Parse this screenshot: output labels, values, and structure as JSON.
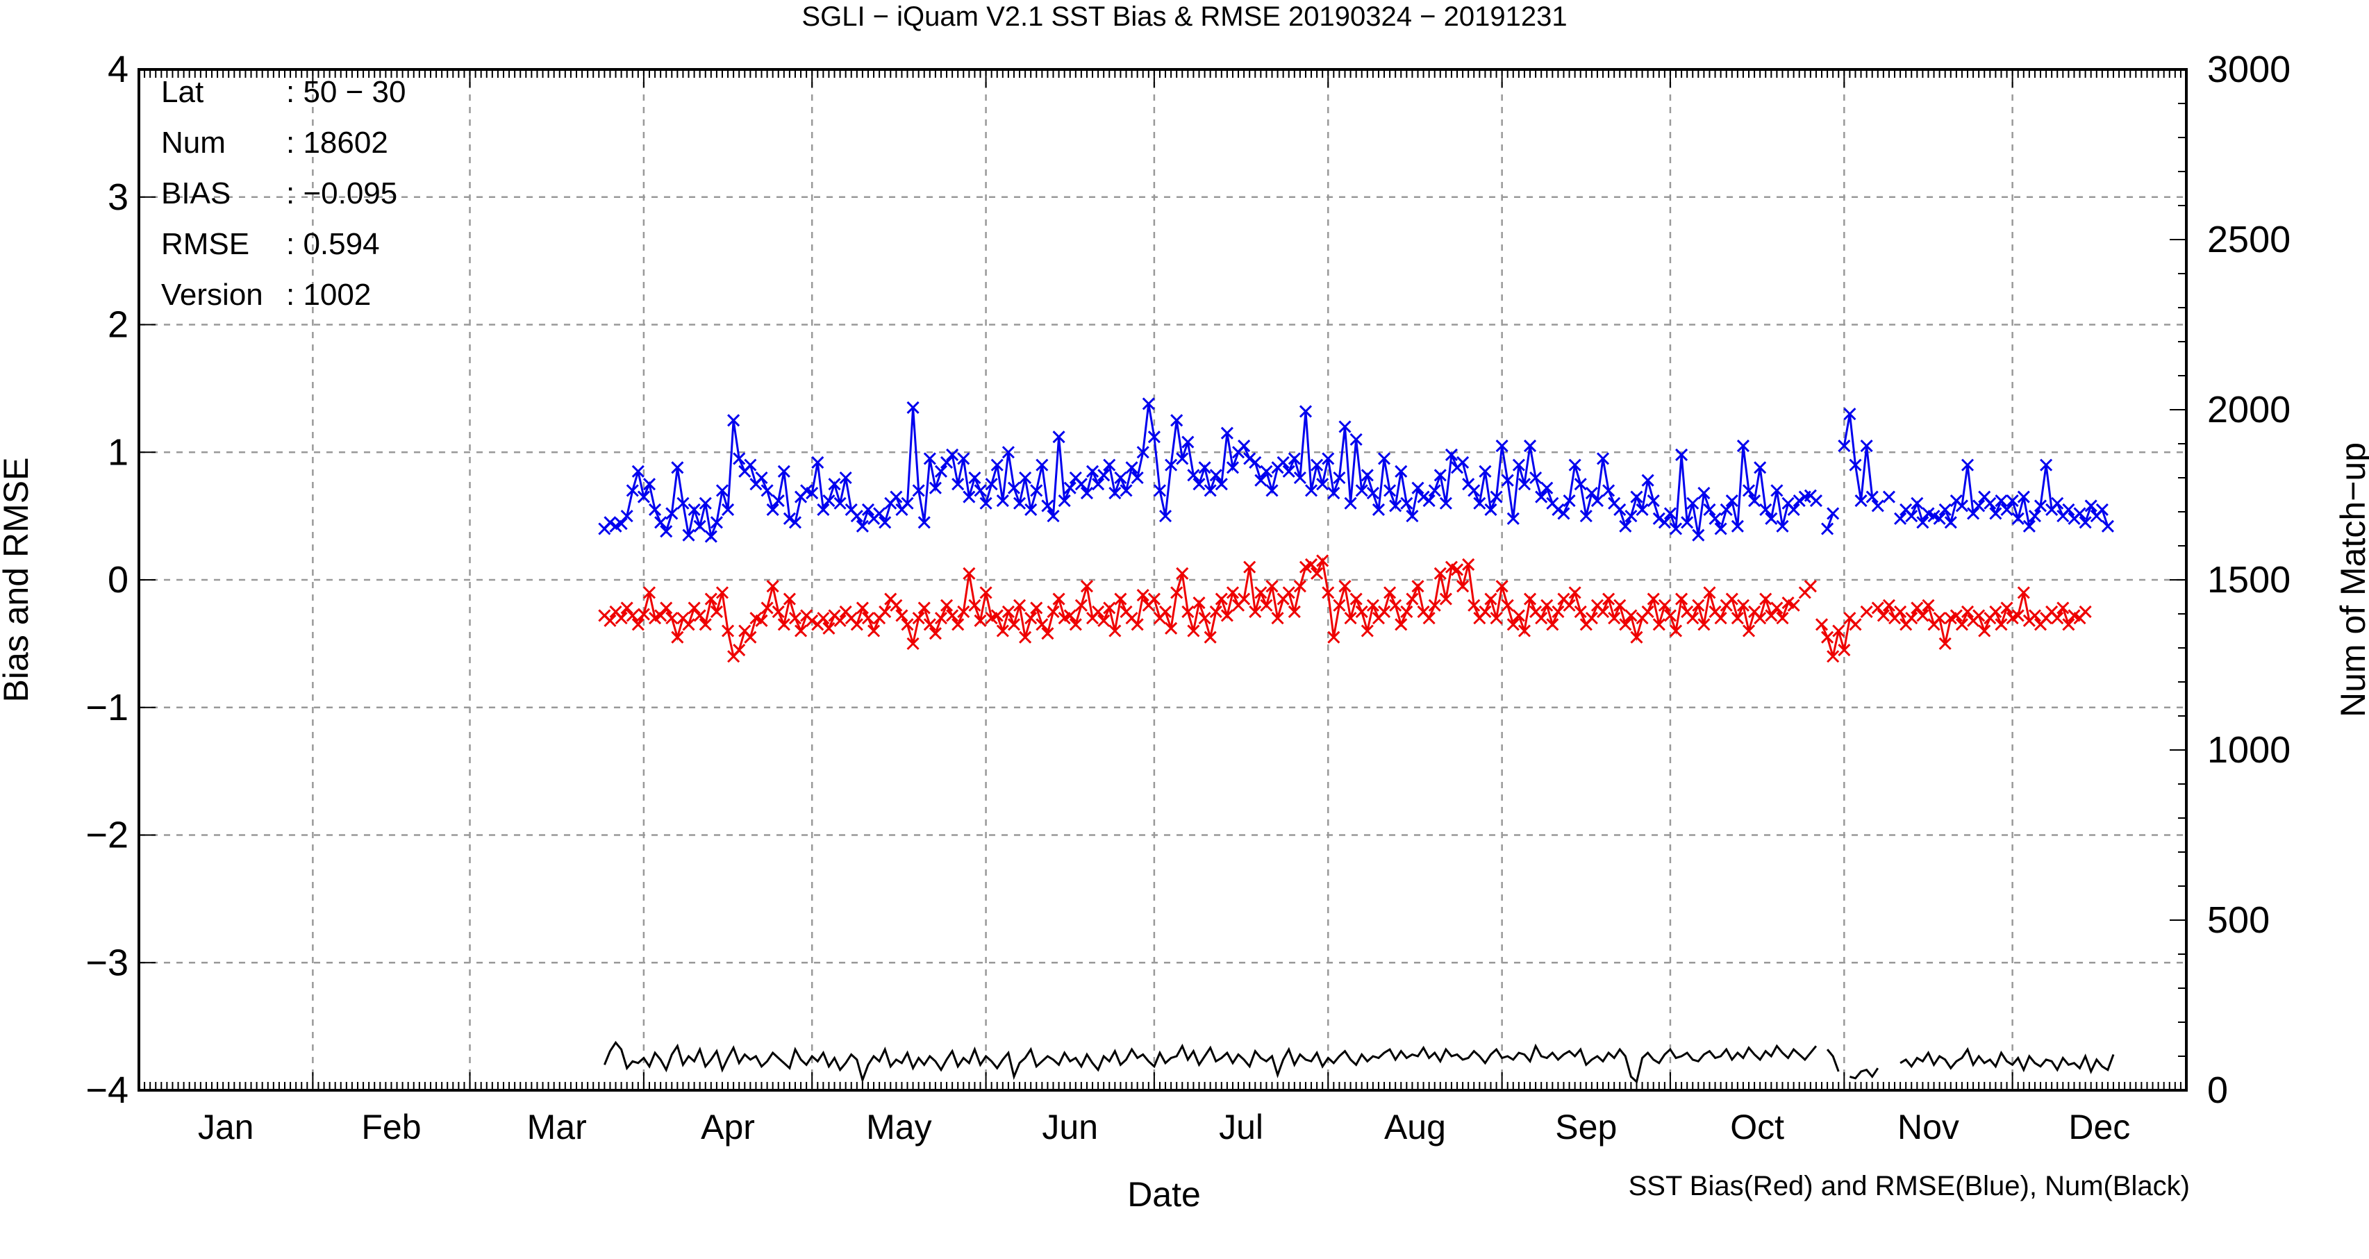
{
  "chart_data": {
    "type": "line",
    "title": "SGLI − iQuam V2.1 SST Bias & RMSE 20190324 − 20191231",
    "xlabel": "Date",
    "ylabel": "Bias and RMSE",
    "y2label": "Num of Match−up",
    "footer": "SST Bias(Red) and RMSE(Blue), Num(Black)",
    "x_range": [
      "2019-01-01",
      "2019-12-31"
    ],
    "x_ticks": [
      "Jan",
      "Feb",
      "Mar",
      "Apr",
      "May",
      "Jun",
      "Jul",
      "Aug",
      "Sep",
      "Oct",
      "Nov",
      "Dec"
    ],
    "ylim": [
      -4,
      4
    ],
    "y_ticks": [
      "4",
      "3",
      "2",
      "1",
      "0",
      "−1",
      "−2",
      "−3",
      "−4"
    ],
    "y2lim": [
      0,
      3000
    ],
    "y2_ticks": [
      "3000",
      "2500",
      "2000",
      "1500",
      "1000",
      "500",
      "0"
    ],
    "grid": true,
    "info": [
      {
        "key": "Lat",
        "value": ": 50 − 30"
      },
      {
        "key": "Num",
        "value": ": 18602"
      },
      {
        "key": "BIAS",
        "value": ": −0.095"
      },
      {
        "key": "RMSE",
        "value": ": 0.594"
      },
      {
        "key": "Version",
        "value": ": 1002"
      }
    ],
    "series": [
      {
        "color": "#0000ee",
        "axis": "left",
        "marker": "x",
        "start_day": 83,
        "values": [
          0.4,
          0.45,
          0.42,
          0.44,
          0.5,
          0.7,
          0.85,
          0.65,
          0.75,
          0.55,
          0.45,
          0.38,
          0.52,
          0.88,
          0.6,
          0.35,
          0.55,
          0.42,
          0.6,
          0.34,
          0.45,
          0.7,
          0.55,
          1.25,
          0.95,
          0.85,
          0.9,
          0.75,
          0.8,
          0.7,
          0.55,
          0.62,
          0.85,
          0.48,
          0.45,
          0.65,
          0.7,
          0.68,
          0.92,
          0.55,
          0.62,
          0.75,
          0.6,
          0.8,
          0.55,
          0.5,
          0.42,
          0.55,
          0.48,
          0.52,
          0.45,
          0.6,
          0.65,
          0.55,
          0.6,
          1.35,
          0.7,
          0.45,
          0.95,
          0.72,
          0.85,
          0.92,
          0.98,
          0.75,
          0.95,
          0.65,
          0.8,
          0.7,
          0.6,
          0.75,
          0.9,
          0.62,
          1.0,
          0.72,
          0.6,
          0.8,
          0.55,
          0.7,
          0.9,
          0.58,
          0.5,
          1.12,
          0.62,
          0.72,
          0.8,
          0.75,
          0.68,
          0.85,
          0.75,
          0.82,
          0.9,
          0.68,
          0.8,
          0.7,
          0.88,
          0.8,
          1.0,
          1.38,
          1.12,
          0.7,
          0.5,
          0.9,
          1.25,
          0.95,
          1.08,
          0.82,
          0.75,
          0.88,
          0.7,
          0.82,
          0.75,
          1.15,
          0.88,
          1.0,
          1.05,
          0.95,
          0.92,
          0.78,
          0.85,
          0.7,
          0.88,
          0.92,
          0.85,
          0.95,
          0.8,
          1.32,
          0.7,
          0.9,
          0.75,
          0.95,
          0.68,
          0.8,
          1.2,
          0.6,
          1.1,
          0.7,
          0.82,
          0.68,
          0.55,
          0.95,
          0.7,
          0.58,
          0.85,
          0.6,
          0.5,
          0.72,
          0.65,
          0.62,
          0.7,
          0.82,
          0.6,
          0.98,
          0.88,
          0.92,
          0.75,
          0.7,
          0.6,
          0.85,
          0.55,
          0.65,
          1.05,
          0.78,
          0.48,
          0.9,
          0.75,
          1.05,
          0.8,
          0.65,
          0.72,
          0.6,
          0.55,
          0.52,
          0.62,
          0.9,
          0.75,
          0.5,
          0.68,
          0.62,
          0.95,
          0.7,
          0.6,
          0.55,
          0.42,
          0.5,
          0.65,
          0.55,
          0.78,
          0.62,
          0.48,
          0.45,
          0.52,
          0.4,
          0.98,
          0.45,
          0.6,
          0.35,
          0.68,
          0.55,
          0.48,
          0.4,
          0.55,
          0.62,
          0.42,
          1.05,
          0.7,
          0.62,
          0.88,
          0.55,
          0.48,
          0.7,
          0.42,
          0.6,
          0.55,
          0.62,
          0.65,
          0.66,
          0.62,
          null,
          0.4,
          0.52,
          null,
          1.05,
          1.3,
          0.9,
          0.62,
          1.05,
          0.65,
          0.58,
          null,
          0.65,
          null,
          0.48,
          0.55,
          0.5,
          0.6,
          0.45,
          0.52,
          0.5,
          0.48,
          0.55,
          0.45,
          0.62,
          0.58,
          0.9,
          0.52,
          0.58,
          0.65,
          0.6,
          0.52,
          0.62,
          0.55,
          0.62,
          0.48,
          0.65,
          0.42,
          0.5,
          0.58,
          0.9,
          0.55,
          0.6,
          0.5,
          0.55,
          0.48,
          0.52,
          0.45,
          0.58,
          0.5,
          0.55,
          0.42
        ]
      },
      {
        "color": "#ee0000",
        "axis": "left",
        "marker": "x",
        "start_day": 83,
        "values": [
          -0.28,
          -0.32,
          -0.25,
          -0.3,
          -0.22,
          -0.28,
          -0.35,
          -0.27,
          -0.1,
          -0.3,
          -0.28,
          -0.22,
          -0.3,
          -0.45,
          -0.3,
          -0.35,
          -0.22,
          -0.28,
          -0.35,
          -0.15,
          -0.25,
          -0.1,
          -0.4,
          -0.6,
          -0.55,
          -0.4,
          -0.45,
          -0.3,
          -0.32,
          -0.22,
          -0.05,
          -0.25,
          -0.35,
          -0.15,
          -0.3,
          -0.4,
          -0.28,
          -0.32,
          -0.35,
          -0.3,
          -0.38,
          -0.28,
          -0.32,
          -0.25,
          -0.3,
          -0.35,
          -0.22,
          -0.3,
          -0.4,
          -0.3,
          -0.25,
          -0.15,
          -0.2,
          -0.28,
          -0.35,
          -0.5,
          -0.3,
          -0.22,
          -0.35,
          -0.42,
          -0.3,
          -0.2,
          -0.28,
          -0.35,
          -0.25,
          0.05,
          -0.2,
          -0.32,
          -0.1,
          -0.3,
          -0.28,
          -0.4,
          -0.25,
          -0.35,
          -0.2,
          -0.45,
          -0.3,
          -0.22,
          -0.35,
          -0.42,
          -0.25,
          -0.15,
          -0.3,
          -0.28,
          -0.35,
          -0.2,
          -0.05,
          -0.3,
          -0.25,
          -0.32,
          -0.22,
          -0.4,
          -0.15,
          -0.25,
          -0.3,
          -0.35,
          -0.12,
          -0.2,
          -0.15,
          -0.3,
          -0.25,
          -0.38,
          -0.1,
          0.05,
          -0.25,
          -0.4,
          -0.18,
          -0.3,
          -0.45,
          -0.25,
          -0.15,
          -0.28,
          -0.1,
          -0.2,
          -0.15,
          0.1,
          -0.25,
          -0.1,
          -0.2,
          -0.05,
          -0.3,
          -0.15,
          -0.1,
          -0.25,
          -0.05,
          0.1,
          0.12,
          0.05,
          0.15,
          -0.1,
          -0.45,
          -0.2,
          -0.05,
          -0.3,
          -0.15,
          -0.25,
          -0.4,
          -0.2,
          -0.3,
          -0.25,
          -0.1,
          -0.2,
          -0.35,
          -0.25,
          -0.15,
          -0.05,
          -0.25,
          -0.3,
          -0.2,
          0.05,
          -0.15,
          0.1,
          0.08,
          -0.05,
          0.12,
          -0.2,
          -0.3,
          -0.25,
          -0.15,
          -0.3,
          -0.05,
          -0.2,
          -0.35,
          -0.28,
          -0.4,
          -0.15,
          -0.25,
          -0.3,
          -0.2,
          -0.35,
          -0.25,
          -0.15,
          -0.2,
          -0.1,
          -0.25,
          -0.35,
          -0.3,
          -0.2,
          -0.25,
          -0.15,
          -0.3,
          -0.2,
          -0.35,
          -0.28,
          -0.45,
          -0.3,
          -0.25,
          -0.15,
          -0.35,
          -0.2,
          -0.28,
          -0.4,
          -0.15,
          -0.25,
          -0.3,
          -0.2,
          -0.35,
          -0.1,
          -0.25,
          -0.3,
          -0.2,
          -0.15,
          -0.3,
          -0.2,
          -0.4,
          -0.25,
          -0.3,
          -0.15,
          -0.28,
          -0.22,
          -0.3,
          -0.18,
          -0.2,
          null,
          -0.1,
          -0.05,
          null,
          -0.35,
          -0.45,
          -0.6,
          -0.4,
          -0.55,
          -0.3,
          -0.35,
          null,
          -0.25,
          null,
          -0.22,
          -0.28,
          -0.2,
          -0.3,
          -0.25,
          -0.35,
          -0.3,
          -0.22,
          -0.28,
          -0.2,
          -0.35,
          -0.3,
          -0.5,
          -0.3,
          -0.28,
          -0.35,
          -0.25,
          -0.32,
          -0.28,
          -0.4,
          -0.3,
          -0.25,
          -0.35,
          -0.22,
          -0.3,
          -0.28,
          -0.1,
          -0.32,
          -0.28,
          -0.35,
          -0.3,
          -0.25,
          -0.3,
          -0.22,
          -0.35,
          -0.28,
          -0.3,
          -0.25
        ]
      },
      {
        "color": "#000000",
        "axis": "right",
        "marker": "none",
        "start_day": 83,
        "values": [
          75,
          115,
          140,
          120,
          65,
          85,
          80,
          95,
          70,
          110,
          90,
          60,
          105,
          130,
          75,
          100,
          85,
          120,
          70,
          90,
          115,
          60,
          95,
          125,
          80,
          105,
          90,
          100,
          70,
          85,
          110,
          95,
          80,
          65,
          120,
          90,
          75,
          100,
          85,
          110,
          70,
          95,
          60,
          80,
          105,
          90,
          30,
          75,
          100,
          85,
          120,
          70,
          90,
          80,
          110,
          65,
          95,
          75,
          100,
          85,
          60,
          90,
          115,
          70,
          95,
          80,
          120,
          75,
          100,
          85,
          65,
          90,
          110,
          40,
          80,
          95,
          120,
          70,
          85,
          100,
          90,
          75,
          110,
          85,
          95,
          70,
          105,
          80,
          60,
          100,
          85,
          115,
          75,
          90,
          120,
          95,
          105,
          85,
          70,
          110,
          80,
          95,
          100,
          130,
          90,
          115,
          75,
          100,
          125,
          85,
          95,
          110,
          80,
          105,
          90,
          70,
          115,
          95,
          85,
          100,
          45,
          90,
          120,
          75,
          105,
          90,
          85,
          110,
          70,
          95,
          80,
          100,
          115,
          90,
          75,
          105,
          85,
          100,
          95,
          110,
          120,
          90,
          115,
          95,
          105,
          100,
          125,
          95,
          110,
          85,
          120,
          100,
          105,
          90,
          95,
          115,
          100,
          80,
          105,
          120,
          95,
          100,
          90,
          110,
          105,
          85,
          130,
          100,
          95,
          110,
          90,
          105,
          115,
          100,
          120,
          75,
          90,
          100,
          85,
          110,
          95,
          120,
          100,
          40,
          25,
          95,
          110,
          90,
          80,
          105,
          120,
          95,
          100,
          110,
          90,
          85,
          105,
          115,
          95,
          100,
          120,
          90,
          110,
          95,
          125,
          105,
          90,
          115,
          100,
          130,
          110,
          95,
          120,
          105,
          90,
          110,
          130,
          null,
          120,
          100,
          55,
          null,
          40,
          35,
          55,
          60,
          40,
          65,
          null,
          75,
          null,
          80,
          90,
          70,
          95,
          85,
          110,
          75,
          100,
          90,
          65,
          85,
          95,
          120,
          75,
          100,
          80,
          90,
          70,
          110,
          85,
          75,
          95,
          60,
          100,
          80,
          70,
          90,
          85,
          60,
          95,
          75,
          80,
          65,
          100,
          55,
          90,
          70,
          60,
          105
        ]
      }
    ]
  }
}
